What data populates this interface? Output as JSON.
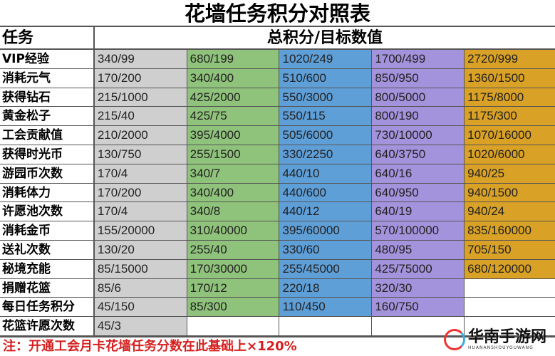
{
  "title": "花墙任务积分对照表",
  "header": {
    "task": "任务",
    "score": "总积分/目标数值"
  },
  "colors": {
    "tier1": "#cfcfcf",
    "tier2": "#8fc27a",
    "tier3": "#5f9fd8",
    "tier4": "#a393dc",
    "tier5": "#d9a125",
    "note": "#d62020"
  },
  "rows": [
    {
      "task": "VIP经验",
      "values": [
        "340/99",
        "680/199",
        "1020/249",
        "1700/499",
        "2720/999"
      ]
    },
    {
      "task": "消耗元气",
      "values": [
        "170/200",
        "340/400",
        "510/600",
        "850/950",
        "1360/1500"
      ]
    },
    {
      "task": "获得钻石",
      "values": [
        "215/1000",
        "425/2000",
        "550/3000",
        "800/5000",
        "1175/8000"
      ]
    },
    {
      "task": "黄金松子",
      "values": [
        "215/40",
        "425/75",
        "550/115",
        "800/190",
        "1175/300"
      ]
    },
    {
      "task": "工会贡献值",
      "values": [
        "210/2000",
        "395/4000",
        "505/6000",
        "730/10000",
        "1070/16000"
      ]
    },
    {
      "task": "获得时光币",
      "values": [
        "130/750",
        "255/1500",
        "330/2250",
        "640/3750",
        "1020/6000"
      ]
    },
    {
      "task": "游园币次数",
      "values": [
        "170/4",
        "340/7",
        "440/10",
        "640/16",
        "940/25"
      ]
    },
    {
      "task": "消耗体力",
      "values": [
        "170/200",
        "340/400",
        "440/600",
        "640/950",
        "940/1500"
      ]
    },
    {
      "task": "许愿池次数",
      "values": [
        "170/4",
        "340/8",
        "440/12",
        "640/19",
        "940/24"
      ]
    },
    {
      "task": "消耗金币",
      "values": [
        "155/20000",
        "310/40000",
        "395/60000",
        "570/100000",
        "835/160000"
      ]
    },
    {
      "task": "送礼次数",
      "values": [
        "130/20",
        "255/40",
        "330/60",
        "480/95",
        "705/150"
      ]
    },
    {
      "task": "秘境充能",
      "values": [
        "85/15000",
        "170/30000",
        "255/45000",
        "425/75000",
        "680/120000"
      ]
    },
    {
      "task": "捐赠花篮",
      "values": [
        "85/6",
        "170/12",
        "220/18",
        "320/30",
        ""
      ]
    },
    {
      "task": "每日任务积分",
      "values": [
        "45/150",
        "85/300",
        "110/450",
        "160/750",
        ""
      ]
    },
    {
      "task": "花篮许愿次数",
      "values": [
        "45/3",
        "",
        "",
        "",
        ""
      ]
    }
  ],
  "note": "注：开通工会月卡花墙任务分数在此基础上×120%",
  "logo": {
    "name": "华南手游网",
    "sub": "HUANANSHOUYOUWANG"
  }
}
